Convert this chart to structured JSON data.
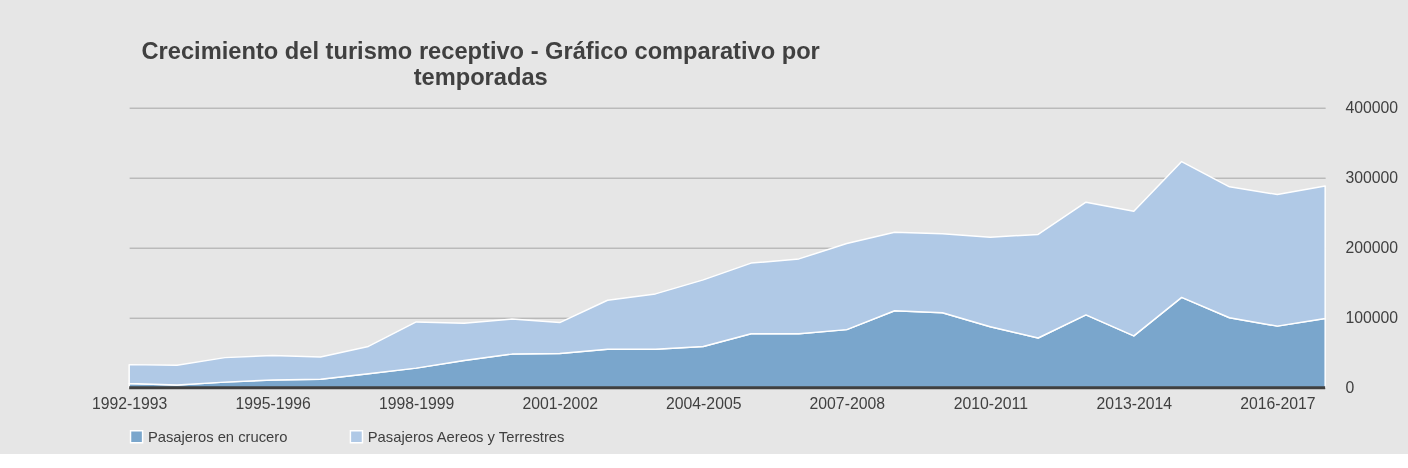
{
  "chart_data": {
    "type": "area",
    "stacked": true,
    "title": "Crecimiento del turismo receptivo - Gráfico comparativo por temporadas",
    "categories": [
      "1992-1993",
      null,
      null,
      "1995-1996",
      null,
      null,
      "1998-1999",
      null,
      null,
      "2001-2002",
      null,
      null,
      "2004-2005",
      null,
      null,
      "2007-2008",
      null,
      null,
      "2010-2011",
      null,
      null,
      "2013-2014",
      null,
      null,
      "2016-2017",
      null
    ],
    "series": [
      {
        "name": "Pasajeros en crucero",
        "color": "#7aa6cc",
        "values": [
          6000,
          4000,
          8000,
          11000,
          12000,
          20000,
          28000,
          39000,
          48000,
          49000,
          55000,
          55000,
          59000,
          77000,
          77000,
          83000,
          110000,
          107000,
          87000,
          71000,
          104000,
          74000,
          129000,
          100000,
          88000,
          99000
        ]
      },
      {
        "name": "Pasajeros Aereos y Terrestres",
        "color": "#b0c9e6",
        "values": [
          27000,
          28000,
          35000,
          35000,
          32000,
          39000,
          66000,
          53000,
          50000,
          44000,
          70000,
          79000,
          95000,
          101000,
          107000,
          123000,
          112000,
          113000,
          128000,
          148000,
          161000,
          178000,
          194000,
          187000,
          188000,
          189000
        ]
      }
    ],
    "ylim": [
      0,
      400000
    ],
    "yticks": [
      0,
      100000,
      200000,
      300000,
      400000
    ],
    "grid": "y",
    "legend": "bottom"
  }
}
